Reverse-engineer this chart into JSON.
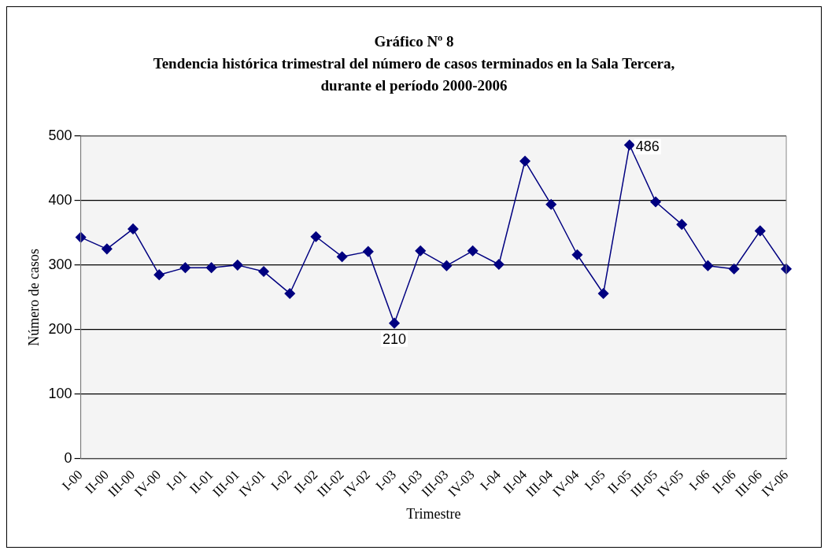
{
  "chart_data": {
    "type": "line",
    "title": "Gráfico Nº 8",
    "subtitle": "Tendencia histórica trimestral del número de casos terminados en la Sala Tercera, durante el período 2000-2006",
    "xlabel": "Trimestre",
    "ylabel": "Número de casos",
    "categories": [
      "I-00",
      "II-00",
      "III-00",
      "IV-00",
      "I-01",
      "II-01",
      "III-01",
      "IV-01",
      "I-02",
      "II-02",
      "III-02",
      "IV-02",
      "I-03",
      "II-03",
      "III-03",
      "IV-03",
      "I-04",
      "II-04",
      "III-04",
      "IV-04",
      "I-05",
      "II-05",
      "III-05",
      "IV-05",
      "I-06",
      "II-06",
      "III-06",
      "IV-06"
    ],
    "series": [
      {
        "color": "#000080",
        "values": [
          343,
          325,
          356,
          285,
          296,
          296,
          300,
          290,
          256,
          344,
          313,
          321,
          210,
          322,
          299,
          322,
          301,
          461,
          394,
          316,
          256,
          486,
          398,
          363,
          299,
          294,
          353,
          294
        ],
        "value_labels": [
          null,
          null,
          null,
          null,
          null,
          null,
          null,
          null,
          null,
          null,
          null,
          null,
          "210",
          null,
          null,
          null,
          null,
          null,
          null,
          null,
          null,
          "486",
          null,
          null,
          null,
          null,
          null,
          null
        ]
      }
    ],
    "ylim": [
      0,
      500
    ],
    "yticks": [
      0,
      100,
      200,
      300,
      400,
      500
    ],
    "grid": "y",
    "legend": false,
    "marker": "diamond",
    "line_style": "solid"
  }
}
